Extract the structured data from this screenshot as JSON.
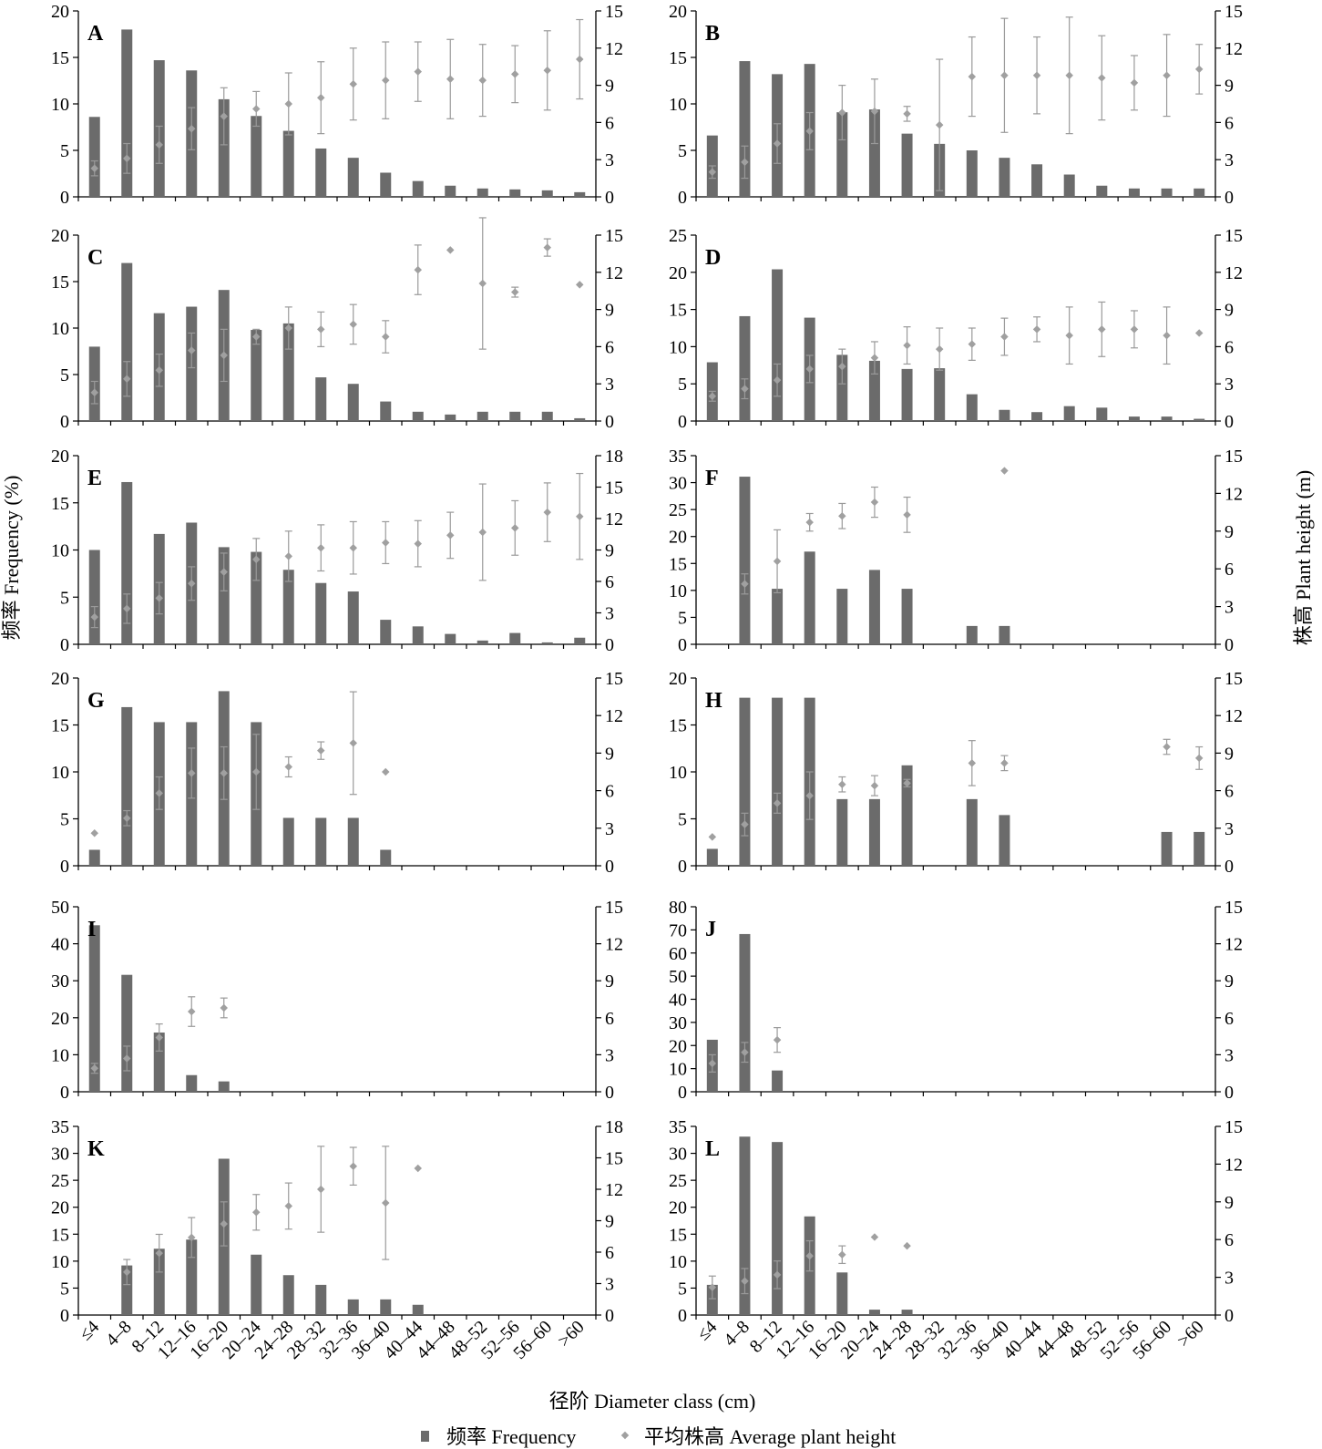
{
  "categories": [
    "≤4",
    "4–8",
    "8–12",
    "12–16",
    "16–20",
    "20–24",
    "24–28",
    "28–32",
    "32–36",
    "36–40",
    "40–44",
    "44–48",
    "48–52",
    "52–56",
    "56–60",
    ">60"
  ],
  "y_left_label": "频率 Frequency (%)",
  "y_right_label": "株高 Plant height (m)",
  "x_label": "径阶 Diameter class (cm)",
  "legend": {
    "bar": "频率 Frequency",
    "point": "平均株高 Average plant height"
  },
  "colors": {
    "bar": "#6b6b6b",
    "point": "#a0a0a0",
    "errbar": "#9a9a9a",
    "axis": "#000000"
  },
  "chart_data": [
    {
      "type": "bar",
      "panel": "A",
      "yl": {
        "max": 20,
        "step": 5
      },
      "yr": {
        "max": 15,
        "step": 3
      },
      "freq": [
        8.6,
        18,
        14.7,
        13.6,
        10.5,
        8.7,
        7.1,
        5.2,
        4.2,
        2.6,
        1.7,
        1.2,
        0.9,
        0.8,
        0.7,
        0.5
      ],
      "height": [
        2.3,
        3.1,
        4.2,
        5.5,
        6.5,
        7.1,
        7.5,
        8,
        9.1,
        9.4,
        10.1,
        9.5,
        9.4,
        9.9,
        10.2,
        11.1
      ],
      "err": [
        0.6,
        1.2,
        1.5,
        1.7,
        2.3,
        1.4,
        2.5,
        2.9,
        2.9,
        3.1,
        2.4,
        3.2,
        2.9,
        2.3,
        3.2,
        3.2
      ]
    },
    {
      "type": "bar",
      "panel": "B",
      "yl": {
        "max": 20,
        "step": 5
      },
      "yr": {
        "max": 15,
        "step": 3
      },
      "freq": [
        6.6,
        14.6,
        13.2,
        14.3,
        9.1,
        9.4,
        6.8,
        5.7,
        5,
        4.2,
        3.5,
        2.4,
        1.2,
        0.9,
        0.9,
        0.9
      ],
      "height": [
        2,
        2.8,
        4.3,
        5.3,
        6.8,
        6.9,
        6.7,
        5.8,
        9.7,
        9.8,
        9.8,
        9.8,
        9.6,
        9.2,
        9.8,
        10.3
      ],
      "err": [
        0.5,
        1.3,
        1.6,
        1.5,
        2.2,
        2.6,
        0.6,
        5.3,
        3.2,
        4.6,
        3.1,
        4.7,
        3.4,
        2.2,
        3.3,
        2
      ]
    },
    {
      "type": "bar",
      "panel": "C",
      "yl": {
        "max": 20,
        "step": 5
      },
      "yr": {
        "max": 15,
        "step": 3
      },
      "freq": [
        8,
        17,
        11.6,
        12.3,
        14.1,
        9.8,
        10.5,
        4.7,
        4,
        2.1,
        1,
        0.7,
        1,
        1,
        1,
        0.3
      ],
      "height": [
        2.3,
        3.4,
        4.1,
        5.7,
        5.3,
        6.8,
        7.5,
        7.4,
        7.8,
        6.8,
        12.2,
        13.8,
        11.1,
        10.4,
        14,
        11
      ],
      "err": [
        0.9,
        1.4,
        1.3,
        1.4,
        2.1,
        0.6,
        1.7,
        1.4,
        1.6,
        1.3,
        2,
        0,
        5.3,
        0.4,
        0.7,
        0
      ]
    },
    {
      "type": "bar",
      "panel": "D",
      "yl": {
        "max": 25,
        "step": 5
      },
      "yr": {
        "max": 15,
        "step": 3
      },
      "freq": [
        7.9,
        14.1,
        20.4,
        13.9,
        8.9,
        8.1,
        7,
        7.1,
        3.6,
        1.5,
        1.2,
        2,
        1.8,
        0.6,
        0.6,
        0.3
      ],
      "height": [
        2,
        2.6,
        3.3,
        4.2,
        4.4,
        5.1,
        6.1,
        5.8,
        6.2,
        6.8,
        7.4,
        6.9,
        7.4,
        7.4,
        6.9,
        7.1
      ],
      "err": [
        0.4,
        0.8,
        1.3,
        1.1,
        1.4,
        1.3,
        1.5,
        1.7,
        1.3,
        1.5,
        1,
        2.3,
        2.2,
        1.5,
        2.3,
        0
      ]
    },
    {
      "type": "bar",
      "panel": "E",
      "yl": {
        "max": 20,
        "step": 5
      },
      "yr": {
        "max": 18,
        "step": 3
      },
      "freq": [
        10,
        17.2,
        11.7,
        12.9,
        10.3,
        9.8,
        7.9,
        6.5,
        5.6,
        2.6,
        1.9,
        1.1,
        0.4,
        1.2,
        0.2,
        0.7
      ],
      "height": [
        2.6,
        3.4,
        4.4,
        5.8,
        6.9,
        8.1,
        8.4,
        9.2,
        9.2,
        9.7,
        9.6,
        10.4,
        10.7,
        11.1,
        12.6,
        12.2
      ],
      "err": [
        1,
        1.4,
        1.5,
        1.6,
        1.8,
        2,
        2.4,
        2.2,
        2.5,
        2,
        2.2,
        2.2,
        4.6,
        2.6,
        2.8,
        4.1
      ]
    },
    {
      "type": "bar",
      "panel": "F",
      "yl": {
        "max": 35,
        "step": 5
      },
      "yr": {
        "max": 15,
        "step": 3
      },
      "freq": [
        0,
        31.1,
        10.3,
        17.2,
        10.3,
        13.8,
        10.3,
        0,
        3.4,
        3.4,
        0,
        0,
        0,
        0,
        0,
        0
      ],
      "height": [
        null,
        4.8,
        6.6,
        9.7,
        10.2,
        11.3,
        10.3,
        null,
        null,
        13.8,
        null,
        null,
        null,
        null,
        null,
        null
      ],
      "err": [
        0,
        0.8,
        2.5,
        0.7,
        1,
        1.2,
        1.4,
        0,
        0,
        0,
        0,
        0,
        0,
        0,
        0,
        0
      ]
    },
    {
      "type": "bar",
      "panel": "G",
      "yl": {
        "max": 20,
        "step": 5
      },
      "yr": {
        "max": 15,
        "step": 3
      },
      "freq": [
        1.7,
        16.9,
        15.3,
        15.3,
        18.6,
        15.3,
        5.1,
        5.1,
        5.1,
        1.7,
        0,
        0,
        0,
        0,
        0,
        0
      ],
      "height": [
        2.6,
        3.8,
        5.8,
        7.4,
        7.4,
        7.5,
        7.9,
        9.2,
        9.8,
        7.5,
        null,
        null,
        null,
        null,
        null,
        null
      ],
      "err": [
        0,
        0.6,
        1.3,
        2,
        2.1,
        3,
        0.8,
        0.7,
        4.1,
        0,
        0,
        0,
        0,
        0,
        0,
        0
      ]
    },
    {
      "type": "bar",
      "panel": "H",
      "yl": {
        "max": 20,
        "step": 5
      },
      "yr": {
        "max": 15,
        "step": 3
      },
      "freq": [
        1.8,
        17.9,
        17.9,
        17.9,
        7.1,
        7.1,
        10.7,
        0,
        7.1,
        5.4,
        0,
        0,
        0,
        0,
        3.6,
        3.6
      ],
      "height": [
        2.3,
        3.3,
        5,
        5.6,
        6.5,
        6.4,
        6.6,
        null,
        8.2,
        8.2,
        null,
        null,
        null,
        null,
        9.5,
        8.6
      ],
      "err": [
        0,
        0.9,
        0.8,
        1.9,
        0.6,
        0.8,
        0.3,
        0,
        1.8,
        0.6,
        0,
        0,
        0,
        0,
        0.6,
        0.9
      ]
    },
    {
      "type": "bar",
      "panel": "I",
      "yl": {
        "max": 50,
        "step": 10
      },
      "yr": {
        "max": 15,
        "step": 3
      },
      "freq": [
        45,
        31.6,
        16,
        4.5,
        2.8,
        0,
        0,
        0,
        0,
        0,
        0,
        0,
        0,
        0,
        0,
        0
      ],
      "height": [
        1.9,
        2.7,
        4.4,
        6.5,
        6.8,
        null,
        null,
        null,
        null,
        null,
        null,
        null,
        null,
        null,
        null,
        null
      ],
      "err": [
        0.4,
        1,
        1.1,
        1.2,
        0.8,
        0,
        0,
        0,
        0,
        0,
        0,
        0,
        0,
        0,
        0,
        0
      ]
    },
    {
      "type": "bar",
      "panel": "J",
      "yl": {
        "max": 80,
        "step": 10
      },
      "yr": {
        "max": 15,
        "step": 3
      },
      "freq": [
        22.5,
        68.2,
        9.2,
        0,
        0,
        0,
        0,
        0,
        0,
        0,
        0,
        0,
        0,
        0,
        0,
        0
      ],
      "height": [
        2.3,
        3.2,
        4.2,
        null,
        null,
        null,
        null,
        null,
        null,
        null,
        null,
        null,
        null,
        null,
        null,
        null
      ],
      "err": [
        0.7,
        0.8,
        1,
        0,
        0,
        0,
        0,
        0,
        0,
        0,
        0,
        0,
        0,
        0,
        0,
        0
      ]
    },
    {
      "type": "bar",
      "panel": "K",
      "yl": {
        "max": 35,
        "step": 5
      },
      "yr": {
        "max": 18,
        "step": 3
      },
      "freq": [
        0,
        9.2,
        12.3,
        14,
        29,
        11.2,
        7.4,
        5.6,
        2.9,
        2.9,
        1.9,
        0,
        0,
        0,
        0,
        0
      ],
      "height": [
        null,
        4.1,
        5.9,
        7.4,
        8.7,
        9.8,
        10.4,
        12,
        14.2,
        10.7,
        14
      ],
      "err": [
        0,
        1.2,
        1.8,
        1.9,
        2.1,
        1.7,
        2.2,
        4.1,
        1.8,
        5.4,
        0,
        0,
        0,
        0,
        0,
        0
      ]
    },
    {
      "type": "bar",
      "panel": "L",
      "yl": {
        "max": 35,
        "step": 5
      },
      "yr": {
        "max": 15,
        "step": 3
      },
      "freq": [
        5.6,
        33.1,
        32.1,
        18.3,
        7.9,
        1,
        1,
        0,
        0,
        0,
        0,
        0,
        0,
        0,
        0,
        0
      ],
      "height": [
        2.2,
        2.7,
        3.2,
        4.7,
        4.8,
        6.2,
        5.5,
        null,
        null,
        null,
        null,
        null,
        null,
        null,
        null,
        null
      ],
      "err": [
        0.9,
        1,
        1.1,
        1.2,
        0.7,
        0,
        0,
        0,
        0,
        0,
        0,
        0,
        0,
        0,
        0,
        0
      ]
    }
  ]
}
